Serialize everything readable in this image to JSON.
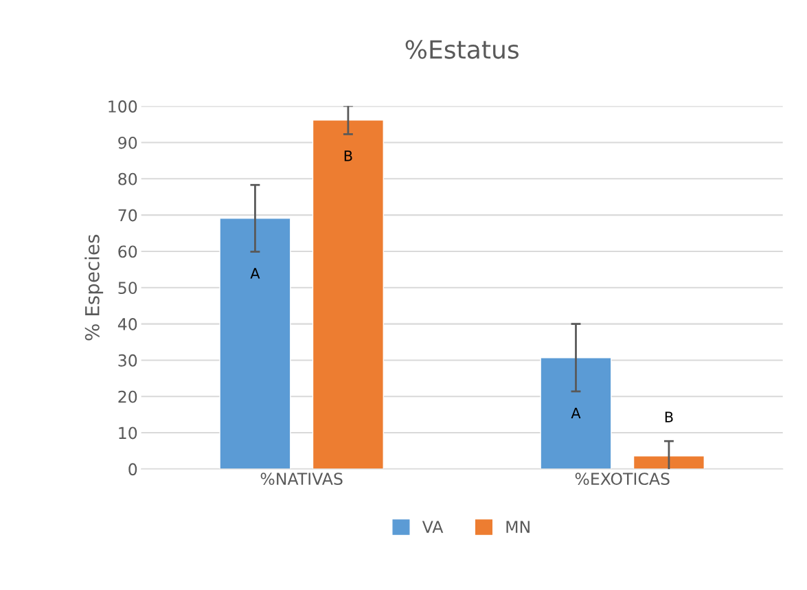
{
  "chart_data": {
    "type": "bar",
    "title": "%Estatus",
    "ylabel": "% Especies",
    "categories": [
      "%NATIVAS",
      "%EXOTICAS"
    ],
    "series": [
      {
        "name": "VA",
        "color": "#5b9bd5",
        "values": [
          69.1,
          30.7
        ],
        "errors": [
          9.2,
          9.3
        ]
      },
      {
        "name": "MN",
        "color": "#ed7d31",
        "values": [
          96.2,
          3.6
        ],
        "errors": [
          3.9,
          4.1
        ]
      }
    ],
    "ylim": [
      0,
      100
    ],
    "yticks": [
      0,
      10,
      20,
      30,
      40,
      50,
      60,
      70,
      80,
      90,
      100
    ],
    "grid": "y",
    "legend": "bottom",
    "annotations": [
      "A",
      "B",
      "A",
      "B"
    ]
  }
}
